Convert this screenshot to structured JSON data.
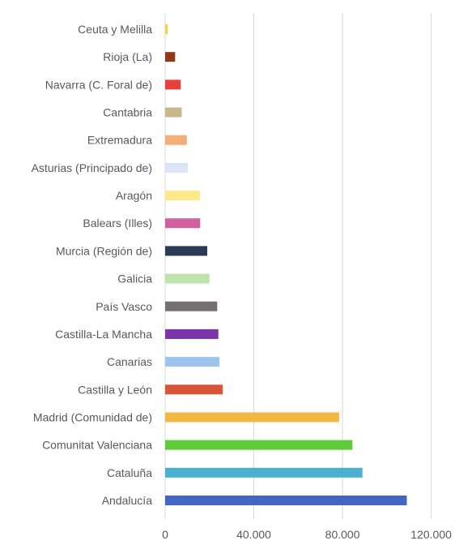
{
  "chart_data": {
    "type": "bar",
    "orientation": "horizontal",
    "categories": [
      "Ceuta y Melilla",
      "Rioja (La)",
      "Navarra (C. Foral de)",
      "Cantabria",
      "Extremadura",
      "Asturias (Principado de)",
      "Aragón",
      "Balears (Illes)",
      "Murcia (Región de)",
      "Galicia",
      "País Vasco",
      "Castilla-La Mancha",
      "Canarias",
      "Castilla y León",
      "Madrid (Comunidad de)",
      "Comunitat Valenciana",
      "Cataluña",
      "Andalucía"
    ],
    "values": [
      1200,
      4500,
      7000,
      7500,
      9800,
      10200,
      15700,
      15800,
      19000,
      20000,
      23500,
      24000,
      24500,
      26000,
      78500,
      84500,
      89000,
      109000
    ],
    "colors": [
      "#f5d547",
      "#8b3a1a",
      "#e8403d",
      "#c8b98c",
      "#f4ae7a",
      "#dbe4f6",
      "#ffe98a",
      "#d0609e",
      "#2d3a55",
      "#bfe2af",
      "#757171",
      "#7b35a9",
      "#9cc4ec",
      "#d9553a",
      "#f3b843",
      "#5fcb3a",
      "#4bb0cf",
      "#4166c4"
    ],
    "title": "",
    "xlabel": "",
    "ylabel": "",
    "xlim": [
      0,
      130000
    ],
    "xticks": [
      0,
      40000,
      80000,
      120000
    ],
    "xtick_labels": [
      "0",
      "40.000",
      "80.000",
      "120.000"
    ],
    "grid": "vertical"
  }
}
